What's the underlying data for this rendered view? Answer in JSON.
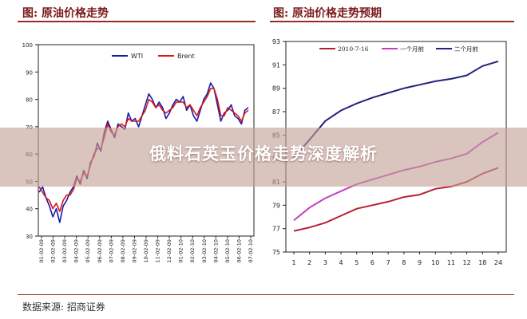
{
  "banner": {
    "title": "俄料石英玉价格走势深度解析"
  },
  "source_note": "数据来源: 招商证券",
  "colors": {
    "wti": "#1a1aa8",
    "brent": "#d81818",
    "h_2010": "#b82030",
    "h_1m": "#c040c0",
    "h_2m": "#22237a",
    "title": "#7a1a1a",
    "rule": "#9a2a2a"
  },
  "chart_data": [
    {
      "type": "line",
      "title": "图: 原油价格走势",
      "xlabel": "",
      "ylabel": "",
      "ylim": [
        30,
        100
      ],
      "yticks": [
        "30",
        "40",
        "50",
        "60",
        "70",
        "80",
        "90",
        "100"
      ],
      "x_ticks": [
        "01-02-09",
        "02-02-09",
        "03-02-09",
        "04-02-09",
        "05-02-09",
        "06-02-09",
        "07-02-09",
        "08-02-09",
        "09-02-09",
        "10-02-09",
        "11-02-09",
        "12-02-09",
        "01-02-10",
        "02-02-10",
        "03-02-10",
        "04-02-10",
        "05-02-10",
        "06-02-10",
        "07-02-10"
      ],
      "legend": {
        "position": "top-center",
        "entries": [
          "WTI",
          "Brent"
        ]
      },
      "grid": false,
      "series": [
        {
          "name": "WTI",
          "color": "#1a1aa8",
          "values": [
            46,
            48,
            44,
            41,
            37,
            40,
            35,
            41,
            43,
            46,
            48,
            52,
            49,
            54,
            51,
            57,
            59,
            64,
            61,
            68,
            72,
            69,
            66,
            71,
            70,
            69,
            75,
            72,
            73,
            70,
            74,
            78,
            82,
            80,
            77,
            79,
            77,
            73,
            75,
            78,
            80,
            79,
            81,
            76,
            78,
            74,
            72,
            76,
            80,
            82,
            86,
            84,
            78,
            72,
            75,
            76,
            78,
            74,
            73,
            71,
            76,
            77
          ]
        },
        {
          "name": "Brent",
          "color": "#d81818",
          "values": [
            48,
            46,
            44,
            43,
            40,
            42,
            39,
            43,
            45,
            45,
            47,
            51,
            50,
            53,
            52,
            56,
            60,
            62,
            62,
            66,
            71,
            68,
            67,
            70,
            71,
            70,
            73,
            72,
            72,
            72,
            74,
            76,
            80,
            79,
            77,
            78,
            76,
            75,
            76,
            77,
            79,
            79,
            79,
            77,
            78,
            76,
            74,
            77,
            79,
            81,
            84,
            84,
            80,
            74,
            74,
            77,
            76,
            75,
            74,
            72,
            75,
            76
          ]
        }
      ]
    },
    {
      "type": "line",
      "title": "图: 原油价格走势预期",
      "xlabel": "",
      "ylabel": "",
      "ylim": [
        75,
        93
      ],
      "yticks": [
        "75",
        "77",
        "79",
        "81",
        "83",
        "85",
        "87",
        "89",
        "91",
        "93"
      ],
      "categories": [
        "1",
        "2",
        "3",
        "4",
        "5",
        "6",
        "7",
        "8",
        "9",
        "10",
        "11",
        "12",
        "18",
        "24"
      ],
      "legend": {
        "position": "top",
        "entries": [
          "2010-7-16",
          "一个月前",
          "二个月前"
        ]
      },
      "grid": false,
      "series": [
        {
          "name": "2010-7-16",
          "color": "#b82030",
          "values": [
            76.8,
            77.1,
            77.5,
            78.1,
            78.7,
            79.0,
            79.3,
            79.7,
            79.9,
            80.4,
            80.6,
            81.0,
            81.7,
            82.2
          ]
        },
        {
          "name": "一个月前",
          "color": "#c040c0",
          "values": [
            77.7,
            78.8,
            79.6,
            80.2,
            80.8,
            81.2,
            81.6,
            82.0,
            82.3,
            82.7,
            83.0,
            83.4,
            84.4,
            85.2
          ]
        },
        {
          "name": "二个月前",
          "color": "#22237a",
          "values": [
            83.1,
            84.6,
            86.2,
            87.1,
            87.7,
            88.2,
            88.6,
            89.0,
            89.3,
            89.6,
            89.8,
            90.1,
            90.9,
            91.3
          ]
        }
      ]
    }
  ]
}
